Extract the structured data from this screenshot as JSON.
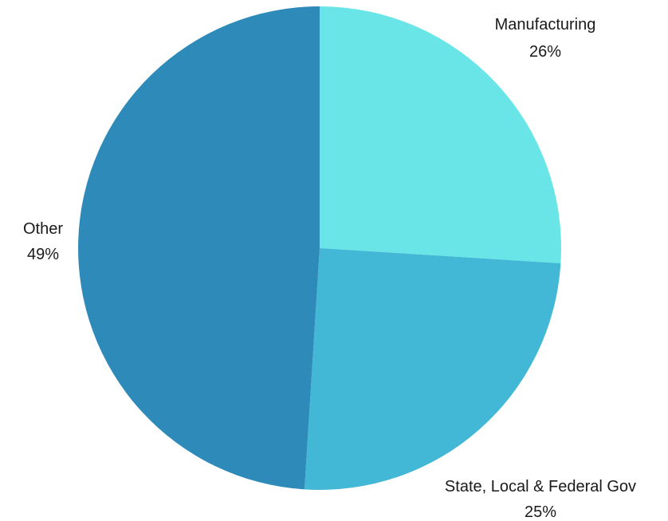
{
  "chart_data": {
    "type": "pie",
    "slices": [
      {
        "label": "Manufacturing",
        "value": 26,
        "display": "26%",
        "color": "#69e5e8"
      },
      {
        "label": "State, Local & Federal Gov",
        "value": 25,
        "display": "25%",
        "color": "#42b8d6"
      },
      {
        "label": "Other",
        "value": 49,
        "display": "49%",
        "color": "#2e8bb9"
      }
    ],
    "start": "12 o'clock",
    "direction": "clockwise",
    "legend": "none"
  }
}
